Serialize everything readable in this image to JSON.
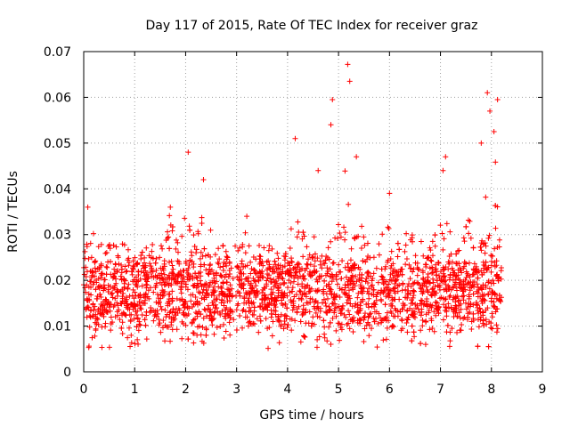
{
  "chart_data": {
    "type": "scatter",
    "title": "Day 117 of 2015, Rate Of TEC Index for receiver graz",
    "xlabel": "GPS time / hours",
    "ylabel": "ROTI / TECUs",
    "xlim": [
      0,
      9
    ],
    "ylim": [
      0,
      0.07
    ],
    "x_ticks": [
      "0",
      "1",
      "2",
      "3",
      "4",
      "5",
      "6",
      "7",
      "8",
      "9"
    ],
    "y_ticks": [
      "0",
      "0.01",
      "0.02",
      "0.03",
      "0.04",
      "0.05",
      "0.06",
      "0.07"
    ],
    "grid": true,
    "marker": "plus",
    "series_color": "#ff0000",
    "data_extent_x": [
      0,
      8.2
    ],
    "typical_band": [
      0.01,
      0.025
    ],
    "peaks": [
      {
        "x": 0.08,
        "y": 0.036
      },
      {
        "x": 1.7,
        "y": 0.036
      },
      {
        "x": 2.05,
        "y": 0.048
      },
      {
        "x": 2.35,
        "y": 0.042
      },
      {
        "x": 3.2,
        "y": 0.034
      },
      {
        "x": 4.15,
        "y": 0.051
      },
      {
        "x": 4.6,
        "y": 0.044
      },
      {
        "x": 4.85,
        "y": 0.054
      },
      {
        "x": 4.88,
        "y": 0.0595
      },
      {
        "x": 5.18,
        "y": 0.0672
      },
      {
        "x": 5.22,
        "y": 0.0635
      },
      {
        "x": 5.35,
        "y": 0.047
      },
      {
        "x": 6.0,
        "y": 0.039
      },
      {
        "x": 7.05,
        "y": 0.044
      },
      {
        "x": 7.1,
        "y": 0.047
      },
      {
        "x": 7.8,
        "y": 0.05
      },
      {
        "x": 7.92,
        "y": 0.061
      },
      {
        "x": 7.97,
        "y": 0.057
      },
      {
        "x": 8.12,
        "y": 0.0595
      },
      {
        "x": 8.05,
        "y": 0.0525
      }
    ]
  }
}
